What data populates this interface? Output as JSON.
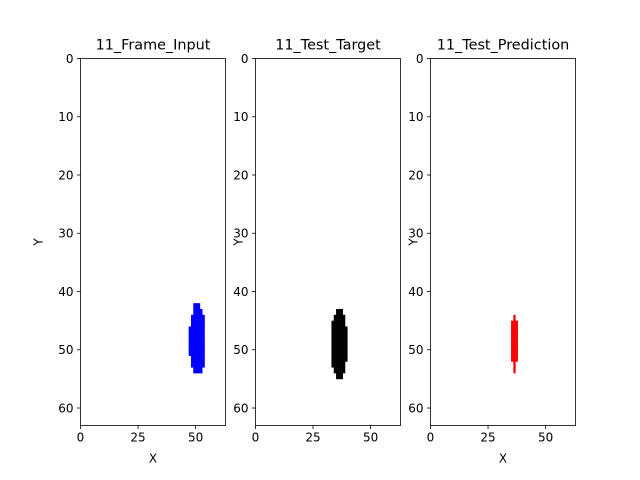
{
  "chart_data": [
    {
      "type": "heatmap",
      "title": "11_Frame_Input",
      "xlabel": "X",
      "ylabel": "Y",
      "xlim": [
        0,
        63
      ],
      "ylim": [
        63,
        0
      ],
      "xticks": [
        0,
        25,
        50
      ],
      "yticks": [
        0,
        10,
        20,
        30,
        40,
        50,
        60
      ],
      "color": "#0000ff",
      "rows": [
        {
          "y": 42,
          "x": [
            49,
            51
          ]
        },
        {
          "y": 43,
          "x": [
            49,
            52
          ]
        },
        {
          "y": 44,
          "x": [
            48,
            53
          ]
        },
        {
          "y": 45,
          "x": [
            48,
            53
          ]
        },
        {
          "y": 46,
          "x": [
            47,
            53
          ]
        },
        {
          "y": 47,
          "x": [
            47,
            53
          ]
        },
        {
          "y": 48,
          "x": [
            47,
            53
          ]
        },
        {
          "y": 49,
          "x": [
            47,
            53
          ]
        },
        {
          "y": 50,
          "x": [
            47,
            53
          ]
        },
        {
          "y": 51,
          "x": [
            48,
            53
          ]
        },
        {
          "y": 52,
          "x": [
            48,
            53
          ]
        },
        {
          "y": 53,
          "x": [
            49,
            52
          ]
        }
      ]
    },
    {
      "type": "heatmap",
      "title": "11_Test_Target",
      "xlabel": "",
      "ylabel": "Y",
      "xlim": [
        0,
        63
      ],
      "ylim": [
        63,
        0
      ],
      "xticks": [
        0,
        25,
        50
      ],
      "yticks": [
        0,
        10,
        20,
        30,
        40,
        50,
        60
      ],
      "color": "#000000",
      "rows": [
        {
          "y": 43,
          "x": [
            35,
            37
          ]
        },
        {
          "y": 44,
          "x": [
            34,
            38
          ]
        },
        {
          "y": 45,
          "x": [
            33,
            38
          ]
        },
        {
          "y": 46,
          "x": [
            33,
            39
          ]
        },
        {
          "y": 47,
          "x": [
            33,
            39
          ]
        },
        {
          "y": 48,
          "x": [
            33,
            39
          ]
        },
        {
          "y": 49,
          "x": [
            33,
            39
          ]
        },
        {
          "y": 50,
          "x": [
            33,
            39
          ]
        },
        {
          "y": 51,
          "x": [
            33,
            39
          ]
        },
        {
          "y": 52,
          "x": [
            33,
            38
          ]
        },
        {
          "y": 53,
          "x": [
            34,
            38
          ]
        },
        {
          "y": 54,
          "x": [
            35,
            37
          ]
        }
      ]
    },
    {
      "type": "heatmap",
      "title": "11_Test_Prediction",
      "xlabel": "X",
      "ylabel": "Y",
      "xlim": [
        0,
        63
      ],
      "ylim": [
        63,
        0
      ],
      "xticks": [
        0,
        25,
        50
      ],
      "yticks": [
        0,
        10,
        20,
        30,
        40,
        50,
        60
      ],
      "color": "#ff0000",
      "rows": [
        {
          "y": 44,
          "x": [
            36,
            36
          ]
        },
        {
          "y": 45,
          "x": [
            35,
            37
          ]
        },
        {
          "y": 46,
          "x": [
            35,
            37
          ]
        },
        {
          "y": 47,
          "x": [
            35,
            37
          ]
        },
        {
          "y": 48,
          "x": [
            35,
            37
          ]
        },
        {
          "y": 49,
          "x": [
            35,
            37
          ]
        },
        {
          "y": 50,
          "x": [
            35,
            37
          ]
        },
        {
          "y": 51,
          "x": [
            35,
            37
          ]
        },
        {
          "y": 52,
          "x": [
            36,
            36
          ]
        },
        {
          "y": 53,
          "x": [
            36,
            36
          ]
        }
      ]
    }
  ]
}
